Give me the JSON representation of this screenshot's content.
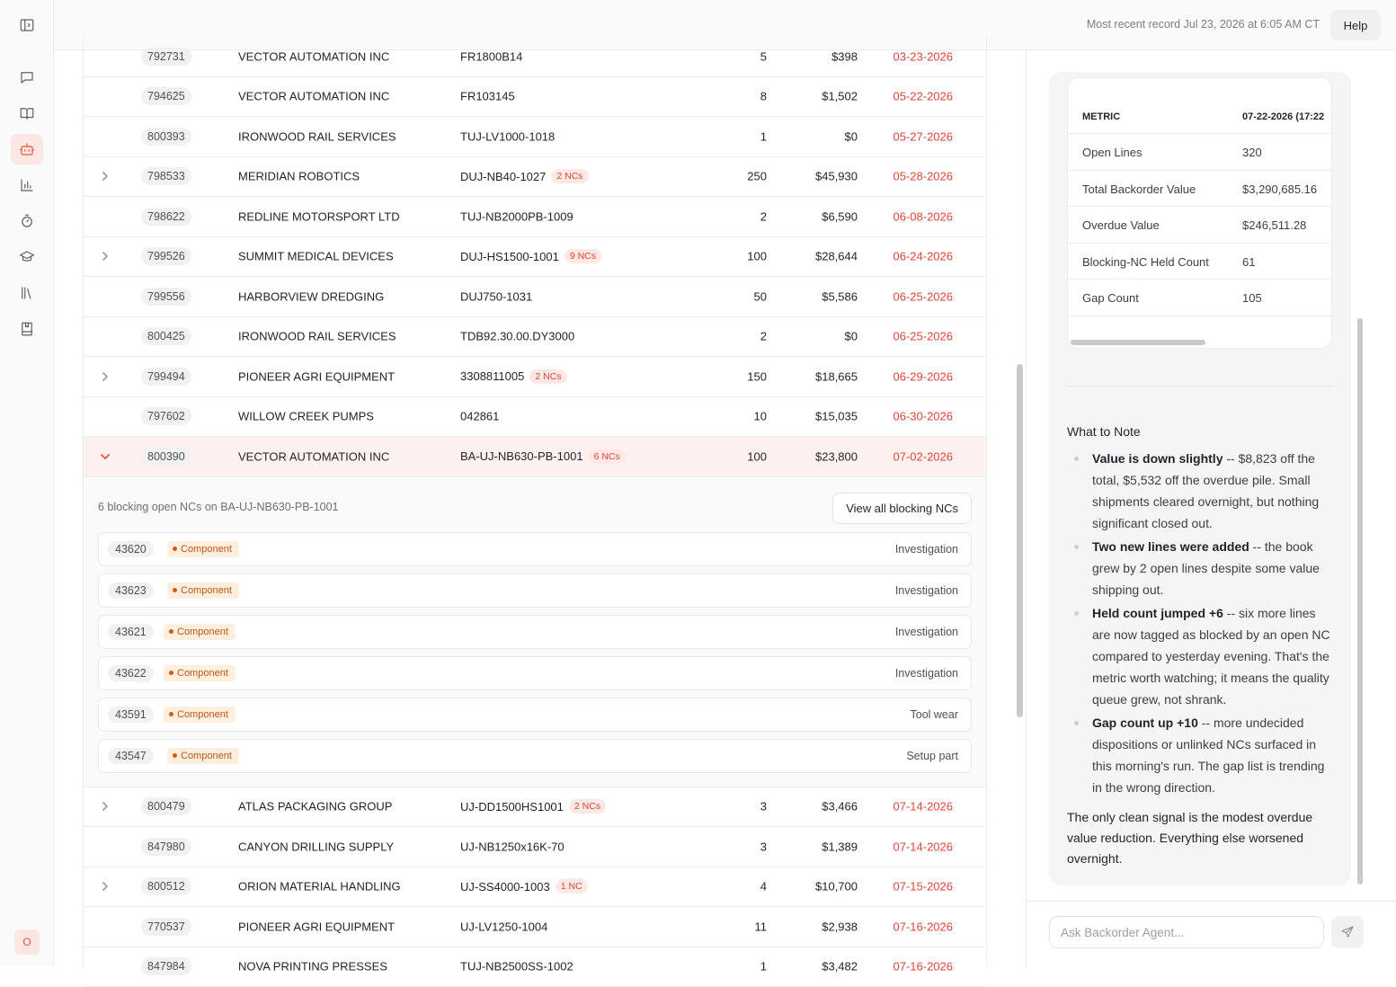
{
  "header": {
    "status": "Most recent record Jul 23, 2026 at 6:05 AM CT",
    "help_label": "Help"
  },
  "sidebar": {
    "icons": [
      "sidebar-toggle-icon",
      "chat-icon",
      "book-open-icon",
      "bot-icon",
      "bar-chart-icon",
      "timer-icon",
      "graduation-cap-icon",
      "library-icon",
      "notebook-icon"
    ],
    "active_icon": "bot-icon",
    "avatar": "O",
    "accent": "#e8553f"
  },
  "table": {
    "rows_top": [
      {
        "id": "792731",
        "customer": "VECTOR AUTOMATION INC",
        "part": "FR1800B14",
        "ncs": "",
        "qty": "5",
        "value": "$398",
        "date": "03-23-2026",
        "expandable": false
      },
      {
        "id": "794625",
        "customer": "VECTOR AUTOMATION INC",
        "part": "FR103145",
        "ncs": "",
        "qty": "8",
        "value": "$1,502",
        "date": "05-22-2026",
        "expandable": false
      },
      {
        "id": "800393",
        "customer": "IRONWOOD RAIL SERVICES",
        "part": "TUJ-LV1000-1018",
        "ncs": "",
        "qty": "1",
        "value": "$0",
        "date": "05-27-2026",
        "expandable": false
      },
      {
        "id": "798533",
        "customer": "MERIDIAN ROBOTICS",
        "part": "DUJ-NB40-1027",
        "ncs": "2 NCs",
        "qty": "250",
        "value": "$45,930",
        "date": "05-28-2026",
        "expandable": true
      },
      {
        "id": "798622",
        "customer": "REDLINE MOTORSPORT LTD",
        "part": "TUJ-NB2000PB-1009",
        "ncs": "",
        "qty": "2",
        "value": "$6,590",
        "date": "06-08-2026",
        "expandable": false
      },
      {
        "id": "799526",
        "customer": "SUMMIT MEDICAL DEVICES",
        "part": "DUJ-HS1500-1001",
        "ncs": "9 NCs",
        "qty": "100",
        "value": "$28,644",
        "date": "06-24-2026",
        "expandable": true
      },
      {
        "id": "799556",
        "customer": "HARBORVIEW DREDGING",
        "part": "DUJ750-1031",
        "ncs": "",
        "qty": "50",
        "value": "$5,586",
        "date": "06-25-2026",
        "expandable": false
      },
      {
        "id": "800425",
        "customer": "IRONWOOD RAIL SERVICES",
        "part": "TDB92.30.00.DY3000",
        "ncs": "",
        "qty": "2",
        "value": "$0",
        "date": "06-25-2026",
        "expandable": false
      },
      {
        "id": "799494",
        "customer": "PIONEER AGRI EQUIPMENT",
        "part": "3308811005",
        "ncs": "2 NCs",
        "qty": "150",
        "value": "$18,665",
        "date": "06-29-2026",
        "expandable": true
      },
      {
        "id": "797602",
        "customer": "WILLOW CREEK PUMPS",
        "part": "042861",
        "ncs": "",
        "qty": "10",
        "value": "$15,035",
        "date": "06-30-2026",
        "expandable": false
      }
    ],
    "expanded_row": {
      "id": "800390",
      "customer": "VECTOR AUTOMATION INC",
      "part": "BA-UJ-NB630-PB-1001",
      "ncs": "6 NCs",
      "qty": "100",
      "value": "$23,800",
      "date": "07-02-2026"
    },
    "detail": {
      "title": "6 blocking open NCs on BA-UJ-NB630-PB-1001",
      "view_all_label": "View all blocking NCs",
      "ncs": [
        {
          "num": "43620",
          "type": "Component",
          "reason": "Investigation"
        },
        {
          "num": "43623",
          "type": "Component",
          "reason": "Investigation"
        },
        {
          "num": "43621",
          "type": "Component",
          "reason": "Investigation"
        },
        {
          "num": "43622",
          "type": "Component",
          "reason": "Investigation"
        },
        {
          "num": "43591",
          "type": "Component",
          "reason": "Tool wear"
        },
        {
          "num": "43547",
          "type": "Component",
          "reason": "Setup part"
        }
      ]
    },
    "rows_bottom": [
      {
        "id": "800479",
        "customer": "ATLAS PACKAGING GROUP",
        "part": "UJ-DD1500HS1001",
        "ncs": "2 NCs",
        "qty": "3",
        "value": "$3,466",
        "date": "07-14-2026",
        "expandable": true
      },
      {
        "id": "847980",
        "customer": "CANYON DRILLING SUPPLY",
        "part": "UJ-NB1250x16K-70",
        "ncs": "",
        "qty": "3",
        "value": "$1,389",
        "date": "07-14-2026",
        "expandable": false
      },
      {
        "id": "800512",
        "customer": "ORION MATERIAL HANDLING",
        "part": "UJ-SS4000-1003",
        "ncs": "1 NC",
        "qty": "4",
        "value": "$10,700",
        "date": "07-15-2026",
        "expandable": true
      },
      {
        "id": "770537",
        "customer": "PIONEER AGRI EQUIPMENT",
        "part": "UJ-LV1250-1004",
        "ncs": "",
        "qty": "11",
        "value": "$2,938",
        "date": "07-16-2026",
        "expandable": false
      },
      {
        "id": "847984",
        "customer": "NOVA PRINTING PRESSES",
        "part": "TUJ-NB2500SS-1002",
        "ncs": "",
        "qty": "1",
        "value": "$3,482",
        "date": "07-16-2026",
        "expandable": false
      }
    ]
  },
  "agent_panel": {
    "metrics": {
      "col_metric": "METRIC",
      "col_date": "07-22-2026 (17:22",
      "rows": [
        {
          "name": "Open Lines",
          "value": "320"
        },
        {
          "name": "Total Backorder Value",
          "value": "$3,290,685.16"
        },
        {
          "name": "Overdue Value",
          "value": "$246,511.28"
        },
        {
          "name": "Blocking-NC Held Count",
          "value": "61"
        },
        {
          "name": "Gap Count",
          "value": "105"
        }
      ]
    },
    "note_title": "What to Note",
    "notes": [
      {
        "bold": "Value is down slightly",
        "text": " -- $8,823 off the total, $5,532 off the overdue pile. Small shipments cleared overnight, but nothing significant closed out."
      },
      {
        "bold": "Two new lines were added",
        "text": " -- the book grew by 2 open lines despite some value shipping out."
      },
      {
        "bold": "Held count jumped +6",
        "text": " -- six more lines are now tagged as blocked by an open NC compared to yesterday evening. That's the metric worth watching; it means the quality queue grew, not shrank."
      },
      {
        "bold": "Gap count up +10",
        "text": " -- more undecided dispositions or unlinked NCs surfaced in this morning's run. The gap list is trending in the wrong direction."
      }
    ],
    "closing": "The only clean signal is the modest overdue value reduction. Everything else worsened overnight.",
    "input_placeholder": "Ask Backorder Agent..."
  }
}
